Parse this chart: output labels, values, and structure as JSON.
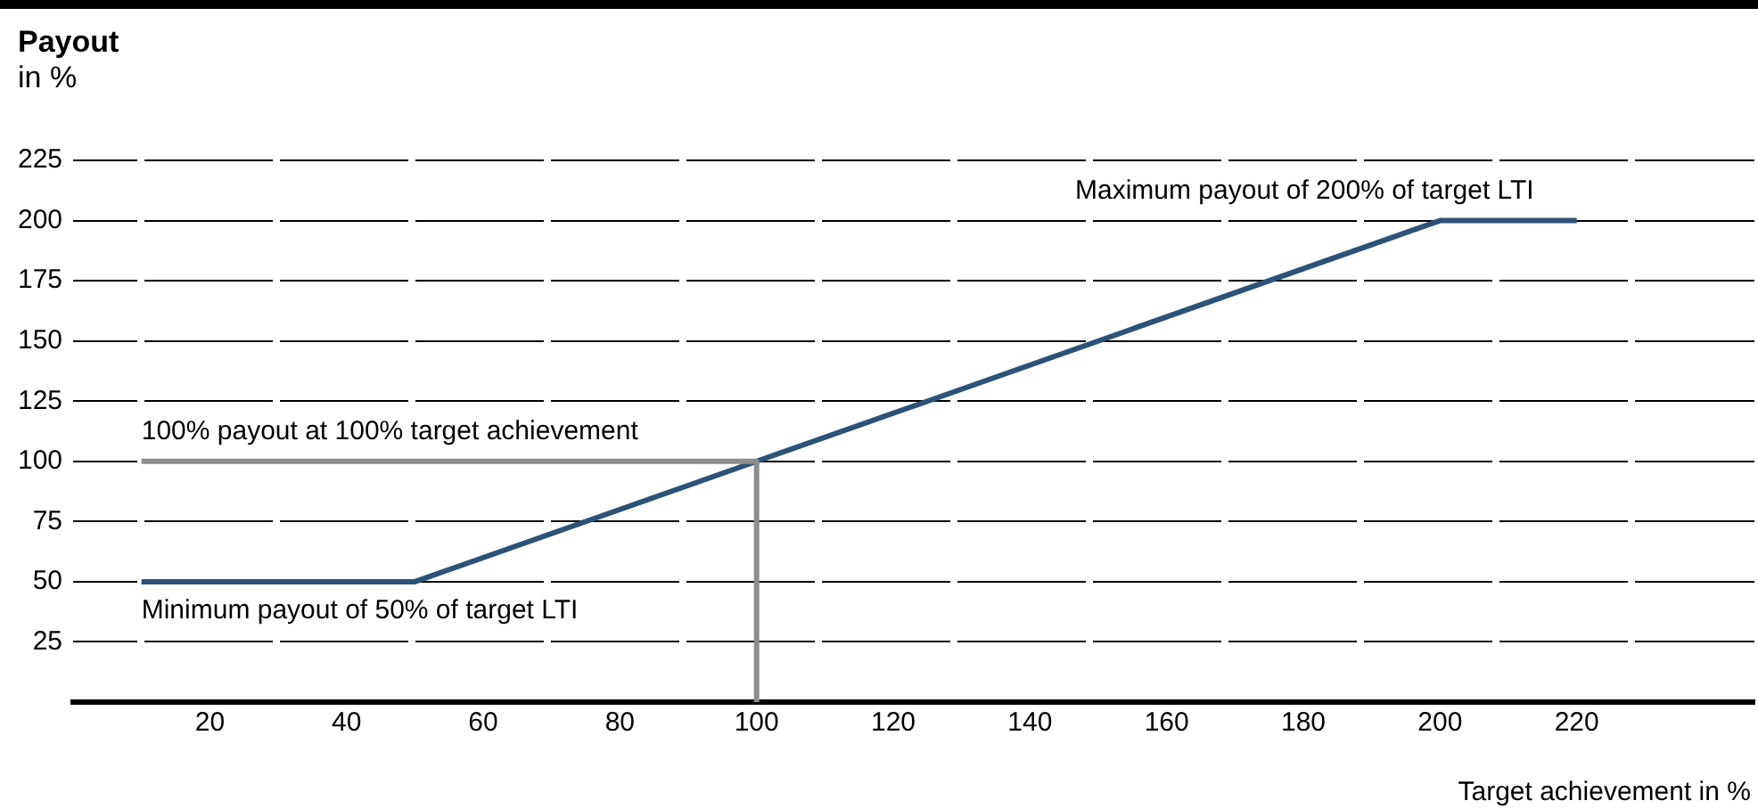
{
  "chart_data": {
    "type": "line",
    "title": "Payout",
    "subtitle": "in %",
    "xlabel": "Target achievement in %",
    "xlim": [
      0,
      246
    ],
    "xticks": [
      20,
      40,
      60,
      80,
      100,
      120,
      140,
      160,
      180,
      200,
      220
    ],
    "ylim": [
      0,
      225
    ],
    "yticks": [
      25,
      50,
      75,
      100,
      125,
      150,
      175,
      200,
      225
    ],
    "grid": "y",
    "legend": false,
    "marker": "none",
    "line_style": "solid",
    "series": [
      {
        "color": "#8c8c8c",
        "x": [
          10,
          100,
          100
        ],
        "values": [
          100,
          100,
          0
        ]
      },
      {
        "color": "#2c5277",
        "x": [
          10,
          50,
          100,
          200,
          220
        ],
        "values": [
          50,
          50,
          100,
          200,
          200
        ]
      }
    ],
    "annotations": [
      "Maximum payout of 200% of target LTI",
      "100% payout at 100% target achievement",
      "Minimum payout of 50% of target LTI"
    ]
  }
}
